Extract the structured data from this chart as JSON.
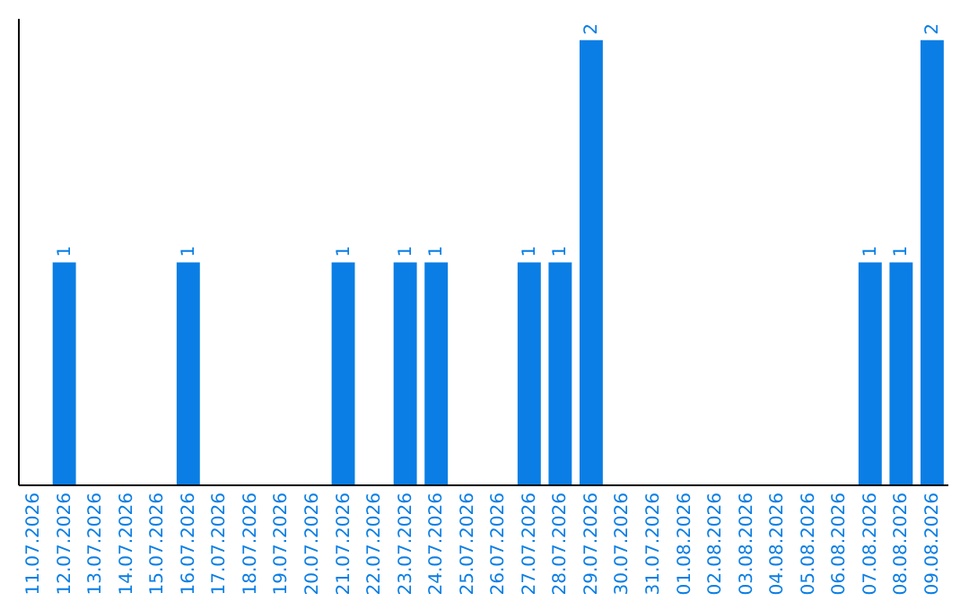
{
  "chart_data": {
    "type": "bar",
    "categories": [
      "11.07.2026",
      "12.07.2026",
      "13.07.2026",
      "14.07.2026",
      "15.07.2026",
      "16.07.2026",
      "17.07.2026",
      "18.07.2026",
      "19.07.2026",
      "20.07.2026",
      "21.07.2026",
      "22.07.2026",
      "23.07.2026",
      "24.07.2026",
      "25.07.2026",
      "26.07.2026",
      "27.07.2026",
      "28.07.2026",
      "29.07.2026",
      "30.07.2026",
      "31.07.2026",
      "01.08.2026",
      "02.08.2026",
      "03.08.2026",
      "04.08.2026",
      "05.08.2026",
      "06.08.2026",
      "07.08.2026",
      "08.08.2026",
      "09.08.2026"
    ],
    "values": [
      0,
      1,
      0,
      0,
      0,
      1,
      0,
      0,
      0,
      0,
      1,
      0,
      1,
      1,
      0,
      0,
      1,
      1,
      2,
      0,
      0,
      0,
      0,
      0,
      0,
      0,
      0,
      1,
      1,
      2
    ],
    "value_labels": [
      null,
      "1",
      null,
      null,
      null,
      "1",
      null,
      null,
      null,
      null,
      "1",
      null,
      "1",
      "1",
      null,
      null,
      "1",
      "1",
      "2",
      null,
      null,
      null,
      null,
      null,
      null,
      null,
      null,
      "1",
      "1",
      "2"
    ],
    "color": "#0a7ee4",
    "ylim": [
      0,
      2.1
    ],
    "tick_labels": "x",
    "grid": false
  }
}
